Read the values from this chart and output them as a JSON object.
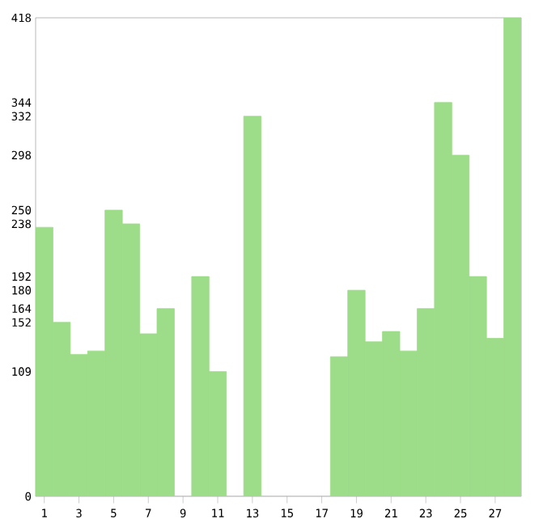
{
  "chart_data": {
    "type": "bar",
    "categories": [
      "1",
      null,
      "3",
      null,
      "5",
      null,
      "7",
      null,
      "9",
      null,
      "11",
      null,
      "13",
      null,
      "15",
      null,
      "17",
      null,
      "19",
      null,
      "21",
      null,
      "23",
      null,
      "25",
      null,
      "27",
      null
    ],
    "values": [
      235,
      152,
      124,
      127,
      250,
      238,
      142,
      164,
      0,
      192,
      109,
      0,
      332,
      0,
      0,
      0,
      0,
      122,
      180,
      135,
      144,
      127,
      164,
      344,
      298,
      192,
      138,
      418
    ],
    "color": "#9ddc88",
    "ylim": [
      0,
      418
    ],
    "yticks": [
      0,
      109,
      152,
      164,
      180,
      192,
      238,
      250,
      298,
      332,
      344,
      418
    ],
    "grid": false
  }
}
